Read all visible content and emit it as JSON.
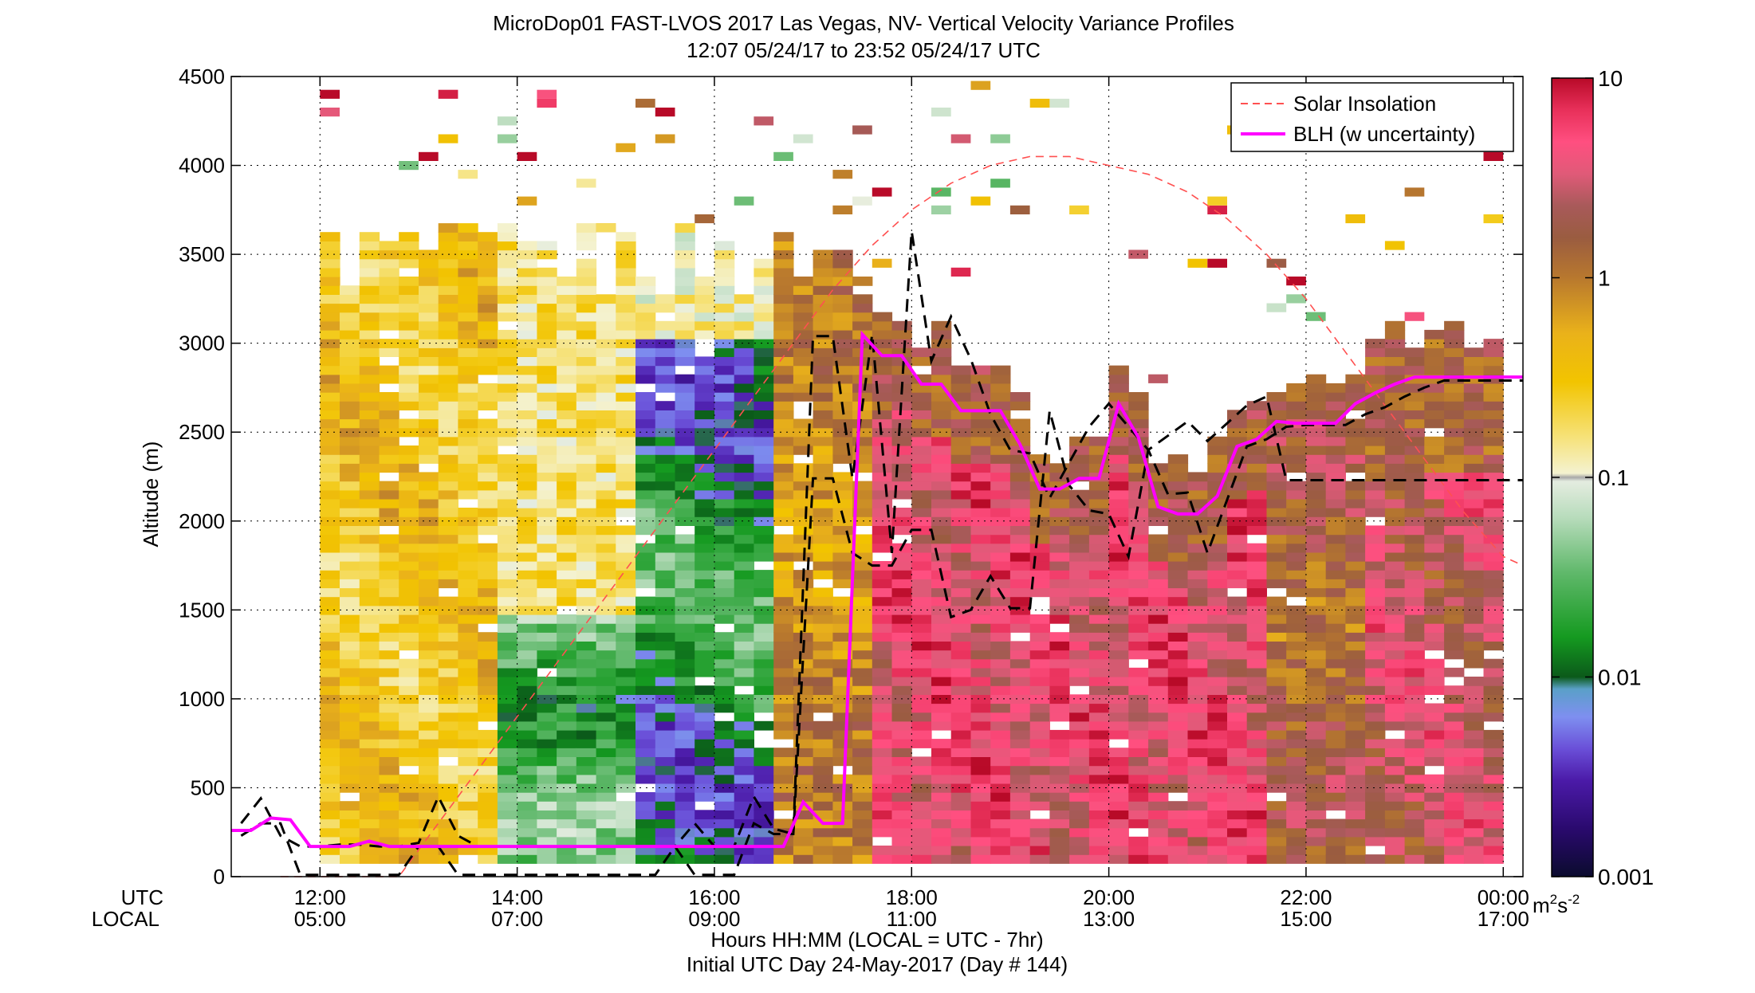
{
  "chart_data": {
    "type": "heatmap",
    "title": "MicroDop01 FAST-LVOS 2017 Las Vegas, NV- Vertical Velocity Variance Profiles",
    "subtitle": "12:07 05/24/17 to 23:52 05/24/17  UTC",
    "ylabel": "Altitude (m)",
    "xlabel_line1": "Hours HH:MM  (LOCAL = UTC - 7hr)",
    "xlabel_line2": "Initial UTC Day 24-May-2017 (Day # 144)",
    "x_row_label_utc": "UTC",
    "x_row_label_local": "LOCAL",
    "xlim_utc_hours": [
      11.1,
      24.2
    ],
    "ylim": [
      0,
      4500
    ],
    "grid": true,
    "x_ticks_utc": [
      "12:00",
      "14:00",
      "16:00",
      "18:00",
      "20:00",
      "22:00",
      "00:00"
    ],
    "x_ticks_local": [
      "05:00",
      "07:00",
      "09:00",
      "11:00",
      "13:00",
      "15:00",
      "17:00"
    ],
    "x_tick_hours": [
      12,
      14,
      16,
      18,
      20,
      22,
      24
    ],
    "y_ticks": [
      "0",
      "500",
      "1000",
      "1500",
      "2000",
      "2500",
      "3000",
      "3500",
      "4000",
      "4500"
    ],
    "y_tick_values": [
      0,
      500,
      1000,
      1500,
      2000,
      2500,
      3000,
      3500,
      4000,
      4500
    ],
    "colorbar": {
      "scale": "log",
      "range": [
        0.001,
        10
      ],
      "tick_labels": [
        "10",
        "1",
        "0.1",
        "0.01",
        "0.001"
      ],
      "tick_values": [
        10,
        1,
        0.1,
        0.01,
        0.001
      ],
      "unit_base": "m",
      "unit_exp1": "2",
      "unit_mid": "s",
      "unit_exp2": "-2"
    },
    "legend": {
      "position": "top-right",
      "entries": [
        {
          "label": "Solar Insolation",
          "style": "dashed",
          "color": "#ff5050"
        },
        {
          "label": "BLH (w uncertainty)",
          "style": "solid",
          "color": "#ff00ff"
        }
      ]
    },
    "series": [
      {
        "name": "BLH (w uncertainty)",
        "color": "#ff00ff",
        "x": [
          11.1,
          11.3,
          11.5,
          11.7,
          11.9,
          12.1,
          12.3,
          12.5,
          12.7,
          12.9,
          13.1,
          13.3,
          13.5,
          13.7,
          13.9,
          14.1,
          14.3,
          14.5,
          14.7,
          14.9,
          15.1,
          15.3,
          15.5,
          15.7,
          15.9,
          16.1,
          16.3,
          16.5,
          16.7,
          16.9,
          17.1,
          17.3,
          17.5,
          17.7,
          17.9,
          18.1,
          18.3,
          18.5,
          18.7,
          18.9,
          19.1,
          19.3,
          19.5,
          19.7,
          19.9,
          20.1,
          20.3,
          20.5,
          20.7,
          20.9,
          21.1,
          21.3,
          21.5,
          21.7,
          21.9,
          22.1,
          22.3,
          22.5,
          22.7,
          22.9,
          23.1,
          23.3,
          23.5,
          23.7,
          23.9,
          24.1,
          24.2
        ],
        "y": [
          260,
          260,
          330,
          320,
          170,
          170,
          170,
          200,
          170,
          170,
          170,
          170,
          170,
          170,
          170,
          170,
          170,
          170,
          170,
          170,
          170,
          170,
          170,
          170,
          170,
          170,
          170,
          170,
          170,
          420,
          300,
          300,
          3050,
          2930,
          2930,
          2770,
          2770,
          2620,
          2620,
          2620,
          2430,
          2180,
          2180,
          2240,
          2240,
          2660,
          2470,
          2080,
          2040,
          2040,
          2140,
          2420,
          2460,
          2560,
          2550,
          2550,
          2550,
          2660,
          2720,
          2770,
          2810,
          2810,
          2810,
          2810,
          2810,
          2810,
          2810
        ]
      },
      {
        "name": "BLH (w uncertainty) upper",
        "color": "#000000",
        "x": [
          11.2,
          11.4,
          11.6,
          11.8,
          12.0,
          12.2,
          12.4,
          12.6,
          12.8,
          13.0,
          13.2,
          13.4,
          13.6,
          13.8,
          14.0,
          14.2,
          14.4,
          14.6,
          14.8,
          15.0,
          15.2,
          15.4,
          15.6,
          15.8,
          16.0,
          16.2,
          16.4,
          16.6,
          16.8,
          17.0,
          17.2,
          17.4,
          17.6,
          17.8,
          18.0,
          18.2,
          18.4,
          18.6,
          18.8,
          19.0,
          19.2,
          19.4,
          19.6,
          19.8,
          20.0,
          20.2,
          20.4,
          20.6,
          20.8,
          21.0,
          21.2,
          21.4,
          21.6,
          21.8,
          22.0,
          22.2,
          22.4,
          22.6,
          22.8,
          23.0,
          23.2,
          23.4,
          23.6,
          23.8,
          24.0,
          24.2
        ],
        "y": [
          300,
          440,
          230,
          170,
          170,
          180,
          180,
          170,
          170,
          190,
          450,
          230,
          170,
          170,
          170,
          170,
          170,
          170,
          170,
          170,
          170,
          170,
          170,
          300,
          170,
          170,
          450,
          270,
          240,
          3040,
          3040,
          2240,
          3050,
          1820,
          3630,
          2900,
          3150,
          2910,
          2600,
          2400,
          2380,
          2130,
          2330,
          2530,
          2660,
          2530,
          2400,
          2150,
          2160,
          1820,
          2120,
          2420,
          2460,
          2530,
          2540,
          2540,
          2540,
          2600,
          2640,
          2700,
          2750,
          2790,
          2790,
          2790,
          2790,
          2790
        ]
      },
      {
        "name": "BLH (w uncertainty) lower",
        "color": "#000000",
        "x": [
          11.2,
          11.4,
          11.6,
          11.8,
          12.0,
          12.2,
          12.4,
          12.6,
          12.8,
          13.0,
          13.2,
          13.4,
          13.6,
          13.8,
          14.0,
          14.2,
          14.4,
          14.6,
          14.8,
          15.0,
          15.2,
          15.4,
          15.6,
          15.8,
          16.0,
          16.2,
          16.4,
          16.6,
          16.8,
          17.0,
          17.2,
          17.4,
          17.6,
          17.8,
          18.0,
          18.2,
          18.4,
          18.6,
          18.8,
          19.0,
          19.2,
          19.4,
          19.6,
          19.8,
          20.0,
          20.2,
          20.4,
          20.6,
          20.8,
          21.0,
          21.2,
          21.4,
          21.6,
          21.8,
          22.0,
          22.2,
          22.4,
          22.6,
          22.8,
          23.0,
          23.2,
          23.4,
          23.6,
          23.8,
          24.0,
          24.2
        ],
        "y": [
          230,
          300,
          300,
          10,
          10,
          10,
          10,
          10,
          10,
          170,
          170,
          10,
          10,
          10,
          10,
          10,
          10,
          10,
          10,
          10,
          10,
          10,
          170,
          10,
          10,
          10,
          300,
          240,
          240,
          2240,
          2240,
          1820,
          1750,
          1750,
          1950,
          1950,
          1460,
          1500,
          1690,
          1510,
          1510,
          2620,
          2200,
          2060,
          2040,
          1800,
          2400,
          2480,
          2560,
          2450,
          2550,
          2650,
          2700,
          2230,
          2230,
          2230,
          2230,
          2230,
          2230,
          2230,
          2230,
          2230,
          2230,
          2230,
          2230,
          2230
        ]
      },
      {
        "name": "Solar Insolation",
        "color": "#ff5050",
        "x": [
          11.6,
          12.0,
          12.4,
          12.8,
          13.2,
          13.6,
          14.0,
          14.4,
          14.8,
          15.2,
          15.6,
          16.0,
          16.4,
          16.8,
          17.2,
          17.6,
          18.0,
          18.4,
          18.8,
          19.2,
          19.6,
          20.0,
          20.4,
          20.8,
          21.2,
          21.6,
          22.0,
          22.4,
          22.8,
          23.2,
          23.6,
          24.0,
          24.2
        ],
        "y": [
          0,
          0,
          0,
          0,
          300,
          600,
          900,
          1200,
          1500,
          1800,
          2100,
          2400,
          2700,
          3000,
          3300,
          3550,
          3750,
          3900,
          4000,
          4050,
          4050,
          4000,
          3950,
          3850,
          3700,
          3500,
          3250,
          2950,
          2650,
          2350,
          2050,
          1800,
          1750
        ]
      }
    ]
  }
}
